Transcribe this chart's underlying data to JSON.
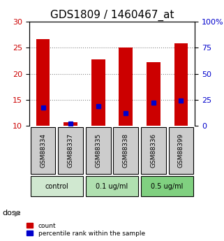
{
  "title": "GDS1809 / 1460467_at",
  "samples": [
    "GSM88334",
    "GSM88337",
    "GSM88335",
    "GSM88338",
    "GSM88336",
    "GSM88399"
  ],
  "count_values": [
    26.7,
    10.7,
    22.8,
    25.0,
    22.3,
    25.8
  ],
  "percentile_values": [
    13.5,
    10.5,
    13.8,
    12.5,
    14.5,
    14.8
  ],
  "ylim": [
    10,
    30
  ],
  "y2lim": [
    0,
    100
  ],
  "yticks": [
    10,
    15,
    20,
    25,
    30
  ],
  "y2ticks": [
    0,
    25,
    50,
    75,
    100
  ],
  "bar_color": "#cc0000",
  "dot_color": "#0000cc",
  "bar_width": 0.5,
  "groups": [
    {
      "label": "control",
      "samples": [
        0,
        1
      ],
      "color": "#d0e8d0"
    },
    {
      "label": "0.1 ug/ml",
      "samples": [
        2,
        3
      ],
      "color": "#b0e0b0"
    },
    {
      "label": "0.5 ug/ml",
      "samples": [
        4,
        5
      ],
      "color": "#80d080"
    }
  ],
  "dose_label": "dose",
  "legend_count": "count",
  "legend_percentile": "percentile rank within the sample",
  "title_fontsize": 11,
  "axis_label_color_left": "#cc0000",
  "axis_label_color_right": "#0000cc",
  "grid_color": "#888888",
  "sample_box_color": "#cccccc",
  "background_color": "#ffffff"
}
